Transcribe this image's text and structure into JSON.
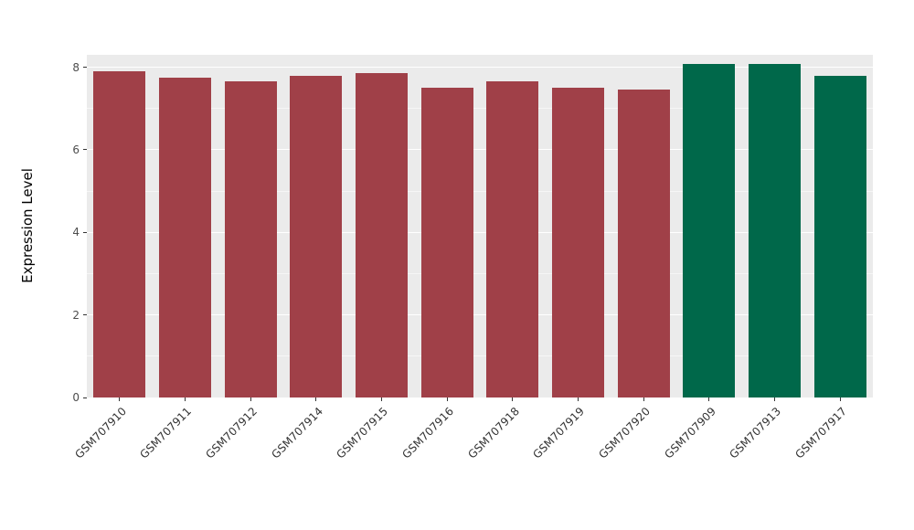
{
  "figure": {
    "background": "#FFFFFF"
  },
  "panel": {
    "background": "#EBEBEB",
    "grid_major_color": "#FFFFFF",
    "grid_minor_color": "#FFFFFF",
    "tick_color": "#333333"
  },
  "chart_data": {
    "type": "bar",
    "title": "",
    "xlabel": "",
    "ylabel": "Expression Level",
    "ylim": [
      0,
      8.3
    ],
    "yticks": [
      0,
      2,
      4,
      6,
      8
    ],
    "yticks_minor": [
      1,
      3,
      5,
      7
    ],
    "grid": true,
    "legend_position": "none",
    "categories": [
      "GSM707910",
      "GSM707911",
      "GSM707912",
      "GSM707914",
      "GSM707915",
      "GSM707916",
      "GSM707918",
      "GSM707919",
      "GSM707920",
      "GSM707909",
      "GSM707913",
      "GSM707917"
    ],
    "values": [
      7.9,
      7.75,
      7.65,
      7.78,
      7.85,
      7.5,
      7.65,
      7.5,
      7.45,
      8.07,
      8.07,
      7.8
    ],
    "bar_colors": [
      "#A04048",
      "#A04048",
      "#A04048",
      "#A04048",
      "#A04048",
      "#A04048",
      "#A04048",
      "#A04048",
      "#A04048",
      "#00684A",
      "#00684A",
      "#00684A"
    ],
    "color_groups": [
      {
        "color": "#A04048",
        "samples": [
          "GSM707910",
          "GSM707911",
          "GSM707912",
          "GSM707914",
          "GSM707915",
          "GSM707916",
          "GSM707918",
          "GSM707919",
          "GSM707920"
        ]
      },
      {
        "color": "#00684A",
        "samples": [
          "GSM707909",
          "GSM707913",
          "GSM707917"
        ]
      }
    ]
  }
}
